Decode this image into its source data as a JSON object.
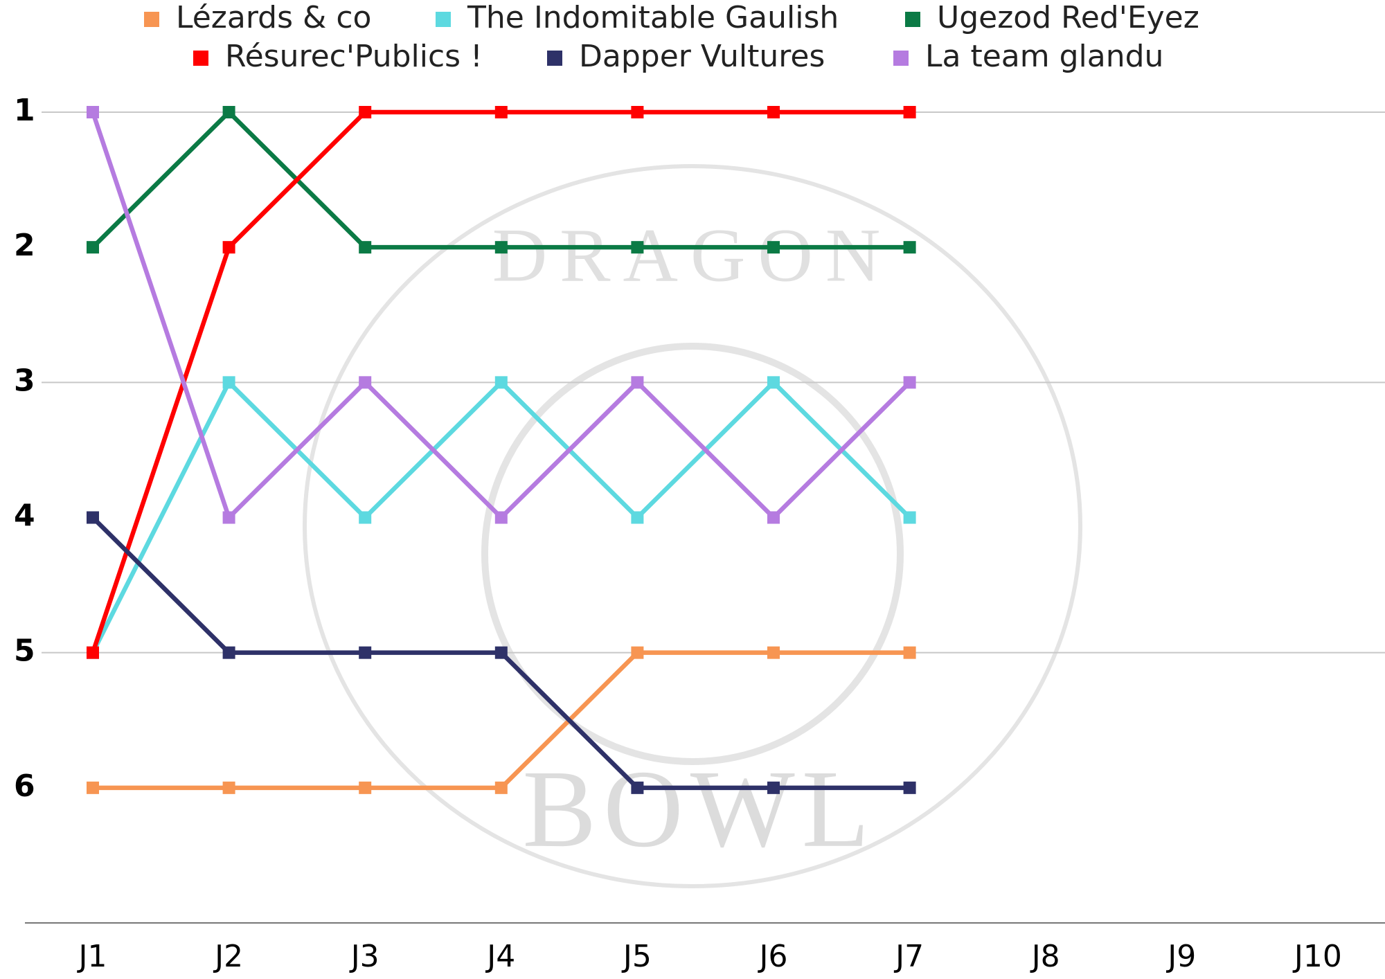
{
  "chart_data": {
    "type": "line",
    "watermark": [
      "DRAGON",
      "BOWL"
    ],
    "categories": [
      "J1",
      "J2",
      "J3",
      "J4",
      "J5",
      "J6",
      "J7",
      "J8",
      "J9",
      "J10"
    ],
    "series": [
      {
        "name": "Lézards & co",
        "color": "#f79552",
        "values": [
          6,
          6,
          6,
          6,
          5,
          5,
          5,
          null,
          null,
          null
        ]
      },
      {
        "name": "The Indomitable Gaulish",
        "color": "#5dd9e0",
        "values": [
          5,
          3,
          4,
          3,
          4,
          3,
          4,
          null,
          null,
          null
        ]
      },
      {
        "name": "Ugezod Red'Eyez",
        "color": "#0b7a45",
        "values": [
          2,
          1,
          2,
          2,
          2,
          2,
          2,
          null,
          null,
          null
        ]
      },
      {
        "name": "Résurec'Publics !",
        "color": "#ff0000",
        "values": [
          5,
          2,
          1,
          1,
          1,
          1,
          1,
          null,
          null,
          null
        ]
      },
      {
        "name": "Dapper Vultures",
        "color": "#2e3168",
        "values": [
          4,
          5,
          5,
          5,
          6,
          6,
          6,
          null,
          null,
          null
        ]
      },
      {
        "name": "La team glandu",
        "color": "#b57be0",
        "values": [
          1,
          4,
          3,
          4,
          3,
          4,
          3,
          null,
          null,
          null
        ]
      }
    ],
    "ylim": [
      1,
      7
    ],
    "y_reversed": true,
    "yticks": [
      1,
      2,
      3,
      4,
      5,
      6
    ],
    "grid_lines": [
      1,
      3,
      5
    ],
    "legend": "top"
  }
}
